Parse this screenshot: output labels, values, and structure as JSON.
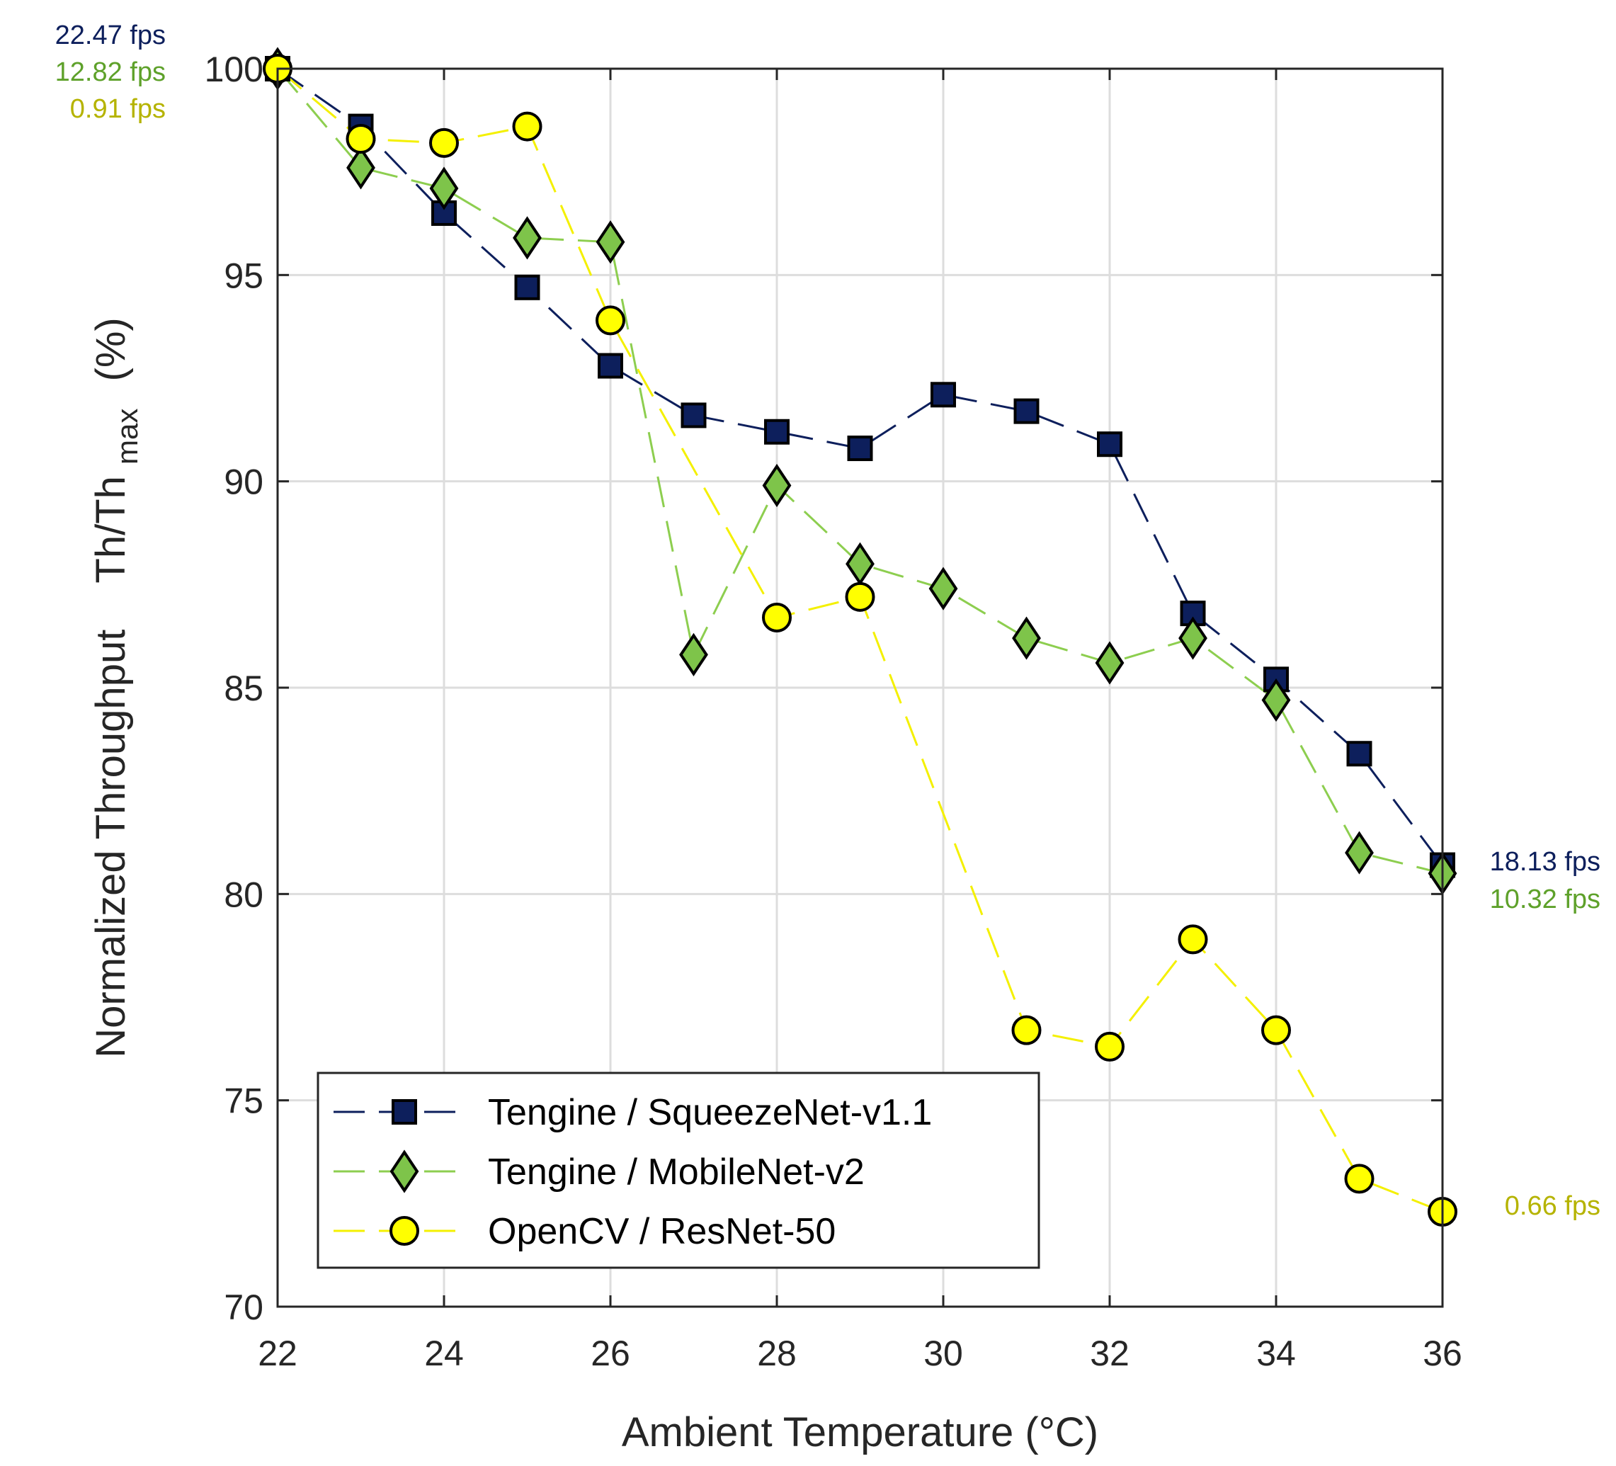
{
  "chart_data": {
    "type": "line",
    "xlabel": "Ambient Temperature (°C)",
    "ylabel_main": "Normalized Throughput",
    "ylabel_ratio": "Th/Th",
    "ylabel_sub": "max",
    "ylabel_unit": "(%)",
    "xlim": [
      22,
      36
    ],
    "ylim": [
      70,
      100
    ],
    "xticks": [
      "22",
      "24",
      "26",
      "28",
      "30",
      "32",
      "34",
      "36"
    ],
    "yticks": [
      "70",
      "75",
      "80",
      "85",
      "90",
      "95",
      "100"
    ],
    "grid": true,
    "legend_position": "bottom-left",
    "x": [
      22,
      23,
      24,
      25,
      26,
      27,
      28,
      29,
      30,
      31,
      32,
      33,
      34,
      35,
      36
    ],
    "series": [
      {
        "name": "Tengine / SqueezeNet-v1.1",
        "marker": "square",
        "line_color": "#0d1f5c",
        "marker_fill": "#0d1f5c",
        "values": [
          100,
          98.6,
          96.5,
          94.7,
          92.8,
          91.6,
          91.2,
          90.8,
          92.1,
          91.7,
          90.9,
          86.8,
          85.2,
          83.4,
          80.7
        ]
      },
      {
        "name": "Tengine / MobileNet-v2",
        "marker": "diamond",
        "line_color": "#8dce4f",
        "marker_fill": "#7ec44a",
        "values": [
          100,
          97.6,
          97.1,
          95.9,
          95.8,
          85.8,
          89.9,
          88.0,
          87.4,
          86.2,
          85.6,
          86.2,
          84.7,
          81.0,
          80.5
        ]
      },
      {
        "name": "OpenCV / ResNet-50",
        "marker": "circle",
        "line_color": "#f4f000",
        "marker_fill": "#ffff00",
        "values": [
          100,
          98.3,
          98.2,
          98.6,
          93.9,
          null,
          86.7,
          87.2,
          null,
          76.7,
          76.3,
          78.9,
          76.7,
          73.1,
          72.3
        ]
      }
    ],
    "annotations": {
      "start": [
        {
          "text": "22.47 fps",
          "color": "#0d1f5c"
        },
        {
          "text": "12.82 fps",
          "color": "#5ea12a"
        },
        {
          "text": "0.91 fps",
          "color": "#b5b300"
        }
      ],
      "end": [
        {
          "text": "18.13 fps",
          "color": "#0d1f5c"
        },
        {
          "text": "10.32 fps",
          "color": "#5ea12a"
        },
        {
          "text": "0.66 fps",
          "color": "#b5b300"
        }
      ]
    }
  }
}
